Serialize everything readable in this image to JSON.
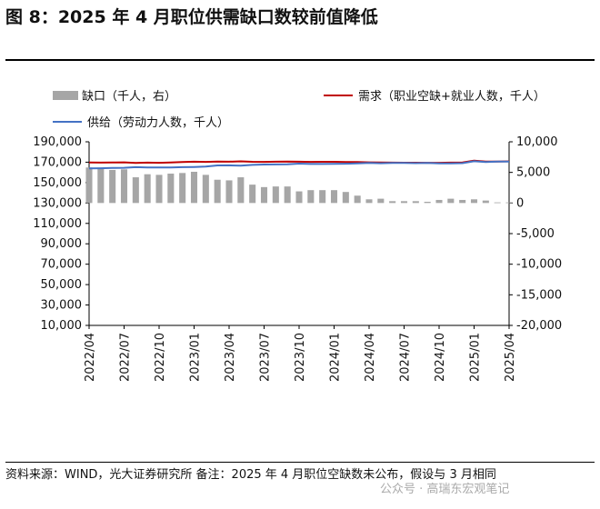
{
  "header": {
    "title": "图 8：2025 年 4 月职位供需缺口数较前值降低"
  },
  "legend": {
    "gap": "缺口（千人，右）",
    "demand": "需求（职业空缺+就业人数，千人）",
    "supply": "供给（劳动力人数，千人）"
  },
  "footer": {
    "source": "资料来源：WIND，光大证券研究所    备注：2025 年 4 月职位空缺数未公布，假设与 3 月相同",
    "watermark": "公众号 · 高瑞东宏观笔记"
  },
  "chart_data": {
    "type": "bar+line",
    "x": [
      "2022/04",
      "2022/05",
      "2022/06",
      "2022/07",
      "2022/08",
      "2022/09",
      "2022/10",
      "2022/11",
      "2022/12",
      "2023/01",
      "2023/02",
      "2023/03",
      "2023/04",
      "2023/05",
      "2023/06",
      "2023/07",
      "2023/08",
      "2023/09",
      "2023/10",
      "2023/11",
      "2023/12",
      "2024/01",
      "2024/02",
      "2024/03",
      "2024/04",
      "2024/05",
      "2024/06",
      "2024/07",
      "2024/08",
      "2024/09",
      "2024/10",
      "2024/11",
      "2024/12",
      "2025/01",
      "2025/02",
      "2025/03",
      "2025/04"
    ],
    "x_ticks": [
      "2022/04",
      "2022/07",
      "2022/10",
      "2023/01",
      "2023/04",
      "2023/07",
      "2023/10",
      "2024/01",
      "2024/04",
      "2024/07",
      "2024/10",
      "2025/01",
      "2025/04"
    ],
    "series": [
      {
        "name": "缺口（千人，右）",
        "type": "bar",
        "axis": "right",
        "color": "#a6a6a6",
        "values": [
          5800,
          5600,
          5400,
          5500,
          4200,
          4700,
          4600,
          4800,
          4900,
          5100,
          4600,
          3800,
          3700,
          4200,
          3000,
          2600,
          2700,
          2700,
          1900,
          2100,
          2100,
          2100,
          1800,
          1200,
          600,
          700,
          300,
          300,
          300,
          200,
          500,
          700,
          500,
          600,
          400,
          100,
          100
        ]
      },
      {
        "name": "需求（职业空缺+就业人数，千人）",
        "type": "line",
        "axis": "left",
        "color": "#c00000",
        "values": [
          169800,
          169600,
          169700,
          169900,
          169300,
          169600,
          169400,
          169700,
          170100,
          170500,
          170300,
          170600,
          170500,
          170800,
          170400,
          170300,
          170500,
          170700,
          170500,
          170300,
          170400,
          170400,
          170200,
          170100,
          169900,
          169700,
          169600,
          169500,
          169500,
          169400,
          169400,
          169600,
          169700,
          171500,
          170600,
          170700,
          170800
        ]
      },
      {
        "name": "供给（劳动力人数，千人）",
        "type": "line",
        "axis": "left",
        "color": "#4472c4",
        "values": [
          164000,
          164100,
          164300,
          164500,
          165100,
          164900,
          164800,
          164900,
          165100,
          165300,
          165700,
          166800,
          166900,
          166600,
          167400,
          167700,
          167800,
          167900,
          168600,
          168300,
          168300,
          168400,
          168500,
          168800,
          169200,
          169000,
          169300,
          169300,
          169100,
          169200,
          168900,
          168900,
          169100,
          170900,
          170200,
          170600,
          170700
        ]
      }
    ],
    "ylim_left": [
      10000,
      190000
    ],
    "yticks_left": [
      10000,
      30000,
      50000,
      70000,
      90000,
      110000,
      130000,
      150000,
      170000,
      190000
    ],
    "ytick_labels_left": [
      "10,000",
      "30,000",
      "50,000",
      "70,000",
      "90,000",
      "110,000",
      "130,000",
      "150,000",
      "170,000",
      "190,000"
    ],
    "ylim_right": [
      -20000,
      10000
    ],
    "yticks_right": [
      -20000,
      -15000,
      -10000,
      -5000,
      0,
      5000,
      10000
    ],
    "ytick_labels_right": [
      "-20,000",
      "-15,000",
      "-10,000",
      "-5,000",
      "0",
      "5,000",
      "10,000"
    ],
    "grid": false,
    "legend_position": "top"
  }
}
